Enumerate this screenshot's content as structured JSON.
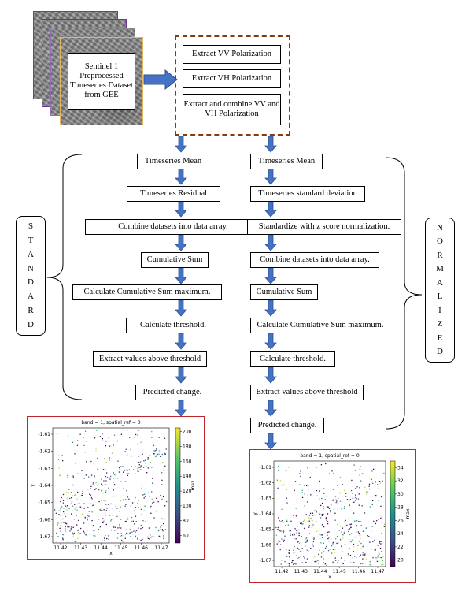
{
  "input": {
    "label": "Sentinel 1 Preprocessed Timeseries Dataset from GEE"
  },
  "polarization": {
    "vv": "Extract VV Polarization",
    "vh": "Extract VH Polarization",
    "both": "Extract and combine VV and VH Polarization"
  },
  "standard": {
    "label": "STANDARD",
    "letters": [
      "S",
      "T",
      "A",
      "N",
      "D",
      "A",
      "R",
      "D"
    ],
    "steps": [
      "Timeseries Mean",
      "Timeseries Residual",
      "Combine datasets into data array.",
      "Cumulative Sum",
      "Calculate Cumulative Sum maximum.",
      "Calculate threshold.",
      "Extract values above threshold",
      "Predicted change."
    ]
  },
  "normalized": {
    "label": "NORMALIZED",
    "letters": [
      "N",
      "O",
      "R",
      "M",
      "A",
      "L",
      "I",
      "Z",
      "E",
      "D"
    ],
    "steps": [
      "Timeseries Mean",
      "Timeseries standard deviation",
      "Standardize with z score normalization.",
      "Combine datasets into data array.",
      "Cumulative Sum",
      "Calculate Cumulative Sum maximum.",
      "Calculate threshold.",
      "Extract values above threshold",
      "Predicted change."
    ]
  },
  "plots": [
    {
      "title": "band = 1, spatial_ref = 0",
      "xlabel": "x",
      "ylabel": "y",
      "cbar_label": "max",
      "xticks": [
        "11.42",
        "11.43",
        "11.44",
        "11.45",
        "11.46",
        "11.47"
      ],
      "yticks": [
        "-1.61",
        "-1.62",
        "-1.63",
        "-1.64",
        "-1.65",
        "-1.66",
        "-1.67"
      ],
      "cbar_ticks": [
        "200",
        "180",
        "160",
        "140",
        "120",
        "100",
        "80",
        "60"
      ],
      "cbar_range": [
        50,
        205
      ]
    },
    {
      "title": "band = 1, spatial_ref = 0",
      "xlabel": "x",
      "ylabel": "y",
      "cbar_label": "max",
      "xticks": [
        "11.42",
        "11.43",
        "11.44",
        "11.45",
        "11.46",
        "11.47"
      ],
      "yticks": [
        "-1.61",
        "-1.62",
        "-1.63",
        "-1.64",
        "-1.65",
        "-1.66",
        "-1.67"
      ],
      "cbar_ticks": [
        "34",
        "32",
        "30",
        "28",
        "26",
        "24",
        "22",
        "20"
      ],
      "cbar_range": [
        19,
        35
      ]
    }
  ],
  "colors": {
    "arrow": "#4472c4",
    "arrow_border": "#2f528f",
    "dash_border": "#843c0c",
    "plot_border": "#c0272d"
  }
}
